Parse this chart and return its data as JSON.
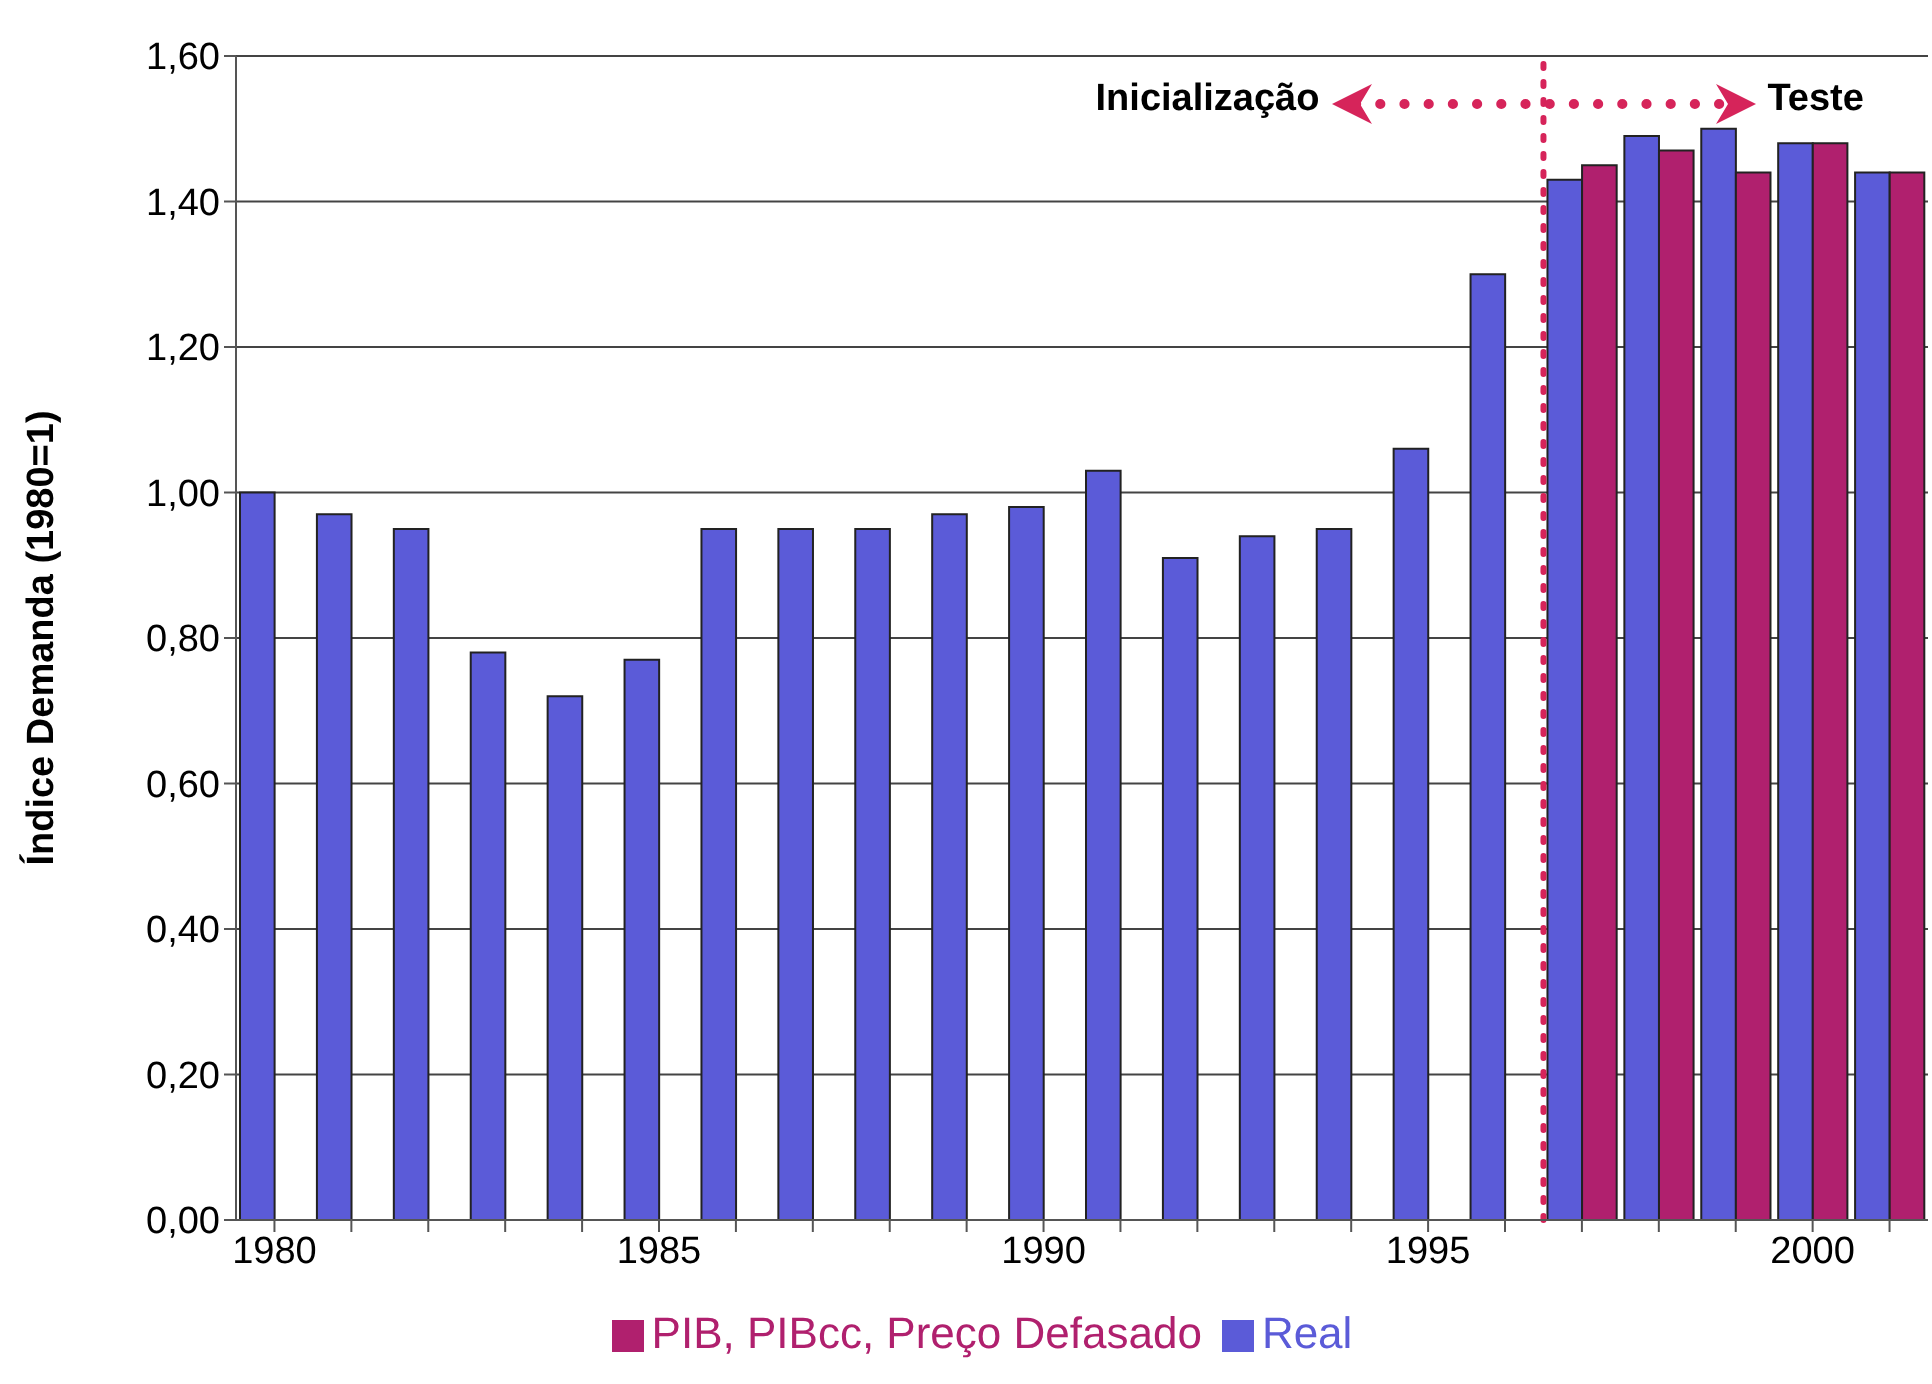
{
  "chart_data": {
    "type": "bar",
    "ylabel": "Índice Demanda (1980=1)",
    "x": [
      1980,
      1981,
      1982,
      1983,
      1984,
      1985,
      1986,
      1987,
      1988,
      1989,
      1990,
      1991,
      1992,
      1993,
      1994,
      1995,
      1996,
      1997,
      1998,
      1999,
      2000,
      2001
    ],
    "series": [
      {
        "name": "Real",
        "color": "#5b5bd8",
        "values": [
          1.0,
          0.97,
          0.95,
          0.78,
          0.72,
          0.77,
          0.95,
          0.95,
          0.95,
          0.97,
          0.98,
          1.03,
          0.91,
          0.94,
          0.95,
          1.06,
          1.3,
          1.43,
          1.49,
          1.5,
          1.48,
          1.44
        ]
      },
      {
        "name": "PIB, PIBcc, Preço Defasado",
        "color": "#b0206e",
        "values": [
          null,
          null,
          null,
          null,
          null,
          null,
          null,
          null,
          null,
          null,
          null,
          null,
          null,
          null,
          null,
          null,
          null,
          1.45,
          1.47,
          1.44,
          1.48,
          1.44
        ]
      }
    ],
    "xlim": [
      1979.5,
      2001.5
    ],
    "xticks": [
      1980,
      {
        "value": 1981,
        "label": null
      },
      {
        "value": 1982,
        "label": null
      },
      {
        "value": 1983,
        "label": null
      },
      {
        "value": 1984,
        "label": null
      },
      1985,
      {
        "value": 1986,
        "label": null
      },
      {
        "value": 1987,
        "label": null
      },
      {
        "value": 1988,
        "label": null
      },
      {
        "value": 1989,
        "label": null
      },
      1990,
      {
        "value": 1991,
        "label": null
      },
      {
        "value": 1992,
        "label": null
      },
      {
        "value": 1993,
        "label": null
      },
      {
        "value": 1994,
        "label": null
      },
      1995,
      {
        "value": 1996,
        "label": null
      },
      {
        "value": 1997,
        "label": null
      },
      {
        "value": 1998,
        "label": null
      },
      {
        "value": 1999,
        "label": null
      },
      2000,
      {
        "value": 2001,
        "label": null
      }
    ],
    "ylim": [
      0,
      1.6
    ],
    "yticks": [
      {
        "value": 0,
        "label": "0,00"
      },
      {
        "value": 0.2,
        "label": "0,20"
      },
      {
        "value": 0.4,
        "label": "0,40"
      },
      {
        "value": 0.6,
        "label": "0,60"
      },
      {
        "value": 0.8,
        "label": "0,80"
      },
      {
        "value": 1.0,
        "label": "1,00"
      },
      {
        "value": 1.2,
        "label": "1,20"
      },
      {
        "value": 1.4,
        "label": "1,40"
      },
      {
        "value": 1.6,
        "label": "1,60"
      }
    ],
    "ref_lines": [
      {
        "axis": "x",
        "value": 1996.5,
        "color": "#d6245a",
        "line_style": "dotted"
      }
    ],
    "annotations": [
      "Inicialização",
      "Teste"
    ],
    "grid": "y",
    "legend": "bottom"
  }
}
